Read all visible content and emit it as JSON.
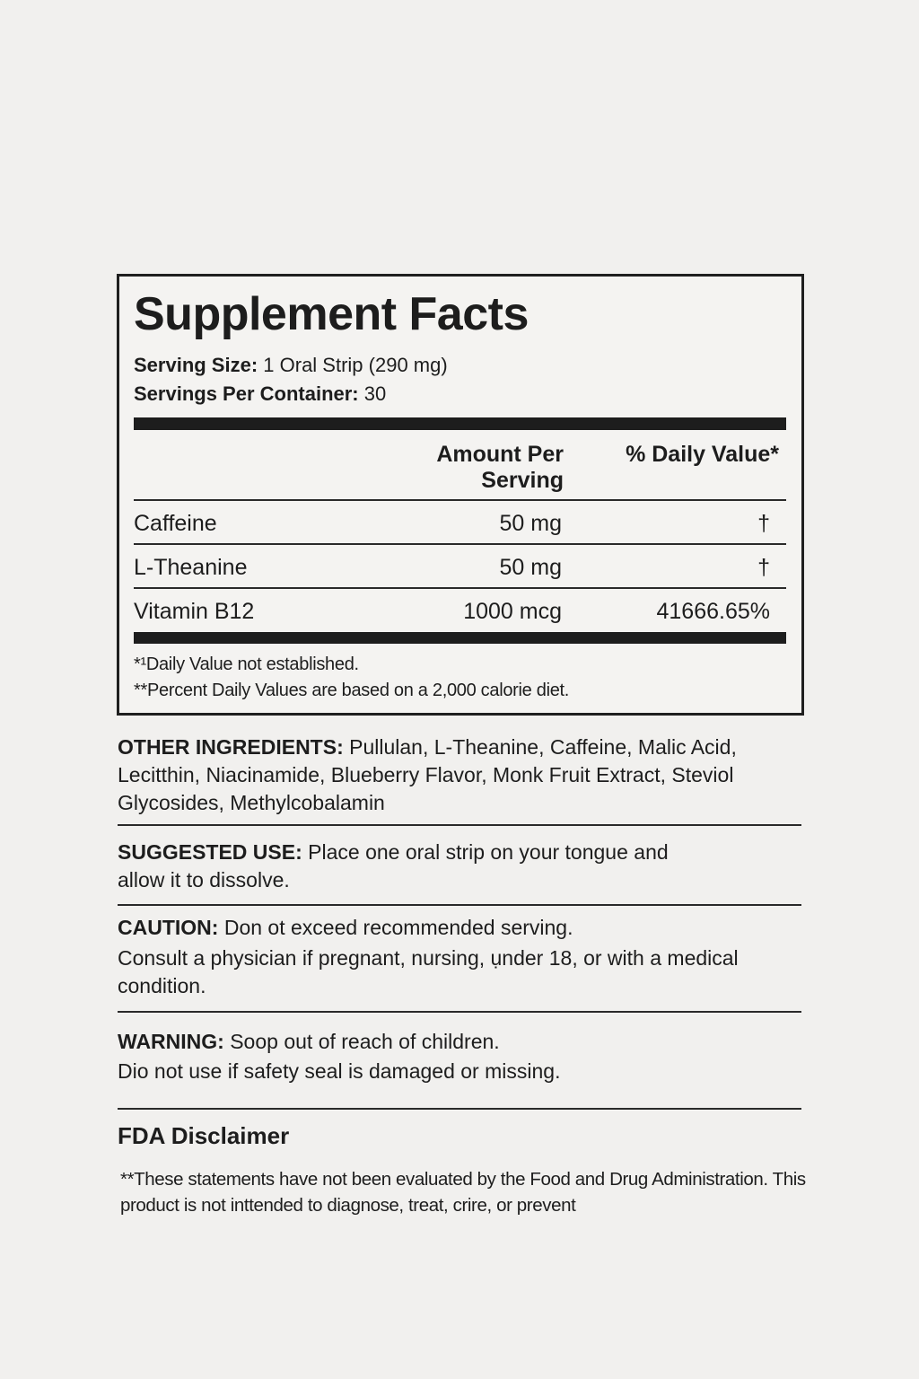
{
  "facts": {
    "title": "Supplement Facts",
    "serving_size_label": "Serving Size:",
    "serving_size_value": "1 Oral Strip (290 mg)",
    "servings_label": "Servings Per Container:",
    "servings_value": "30",
    "col_amount_line1": "Amount Per",
    "col_amount_line2": "Serving",
    "col_dv": "% Daily Value*",
    "rows": [
      {
        "name": "Caffeine",
        "amount": "50 mg",
        "dv": "†"
      },
      {
        "name": "L-Theanine",
        "amount": "50 mg",
        "dv": "†"
      },
      {
        "name": "Vitamin B12",
        "amount": "1000 mcg",
        "dv": "41666.65%"
      }
    ],
    "footnote1": "*¹Daily Value not established.",
    "footnote2": "**Percent Daily Values are based on a 2,000 calorie diet."
  },
  "other_ingredients": {
    "label": "OTHER INGREDIENTS:",
    "text": "Pullulan, L-Theanine, Caffeine, Malic Acid, Lecitthin, Niacinamide, Blueberry Flavor, Monk Fruit Extract, Steviol Glycosides, Methylcobalamin"
  },
  "suggested_use": {
    "label": "SUGGESTED USE:",
    "text": "Place one oral strip on your tongue and allow it to dissolve."
  },
  "caution": {
    "label": "CAUTION:",
    "line1": "Don ot exceed recommended serving.",
    "line2": "Consult a physician if pregnant, nursing, ụnder 18, or with a medical condition."
  },
  "warning": {
    "label": "WARNING:",
    "line1": "Soop out of reach of children.",
    "line2": "Dio not use if safety seal is damaged or missing."
  },
  "fda": {
    "title": "FDA Disclaimer",
    "text": "**These statements have not been evaluated by the Food and Drug Administration. This product is not inttended to diagnose, treat, crire, or prevent"
  }
}
